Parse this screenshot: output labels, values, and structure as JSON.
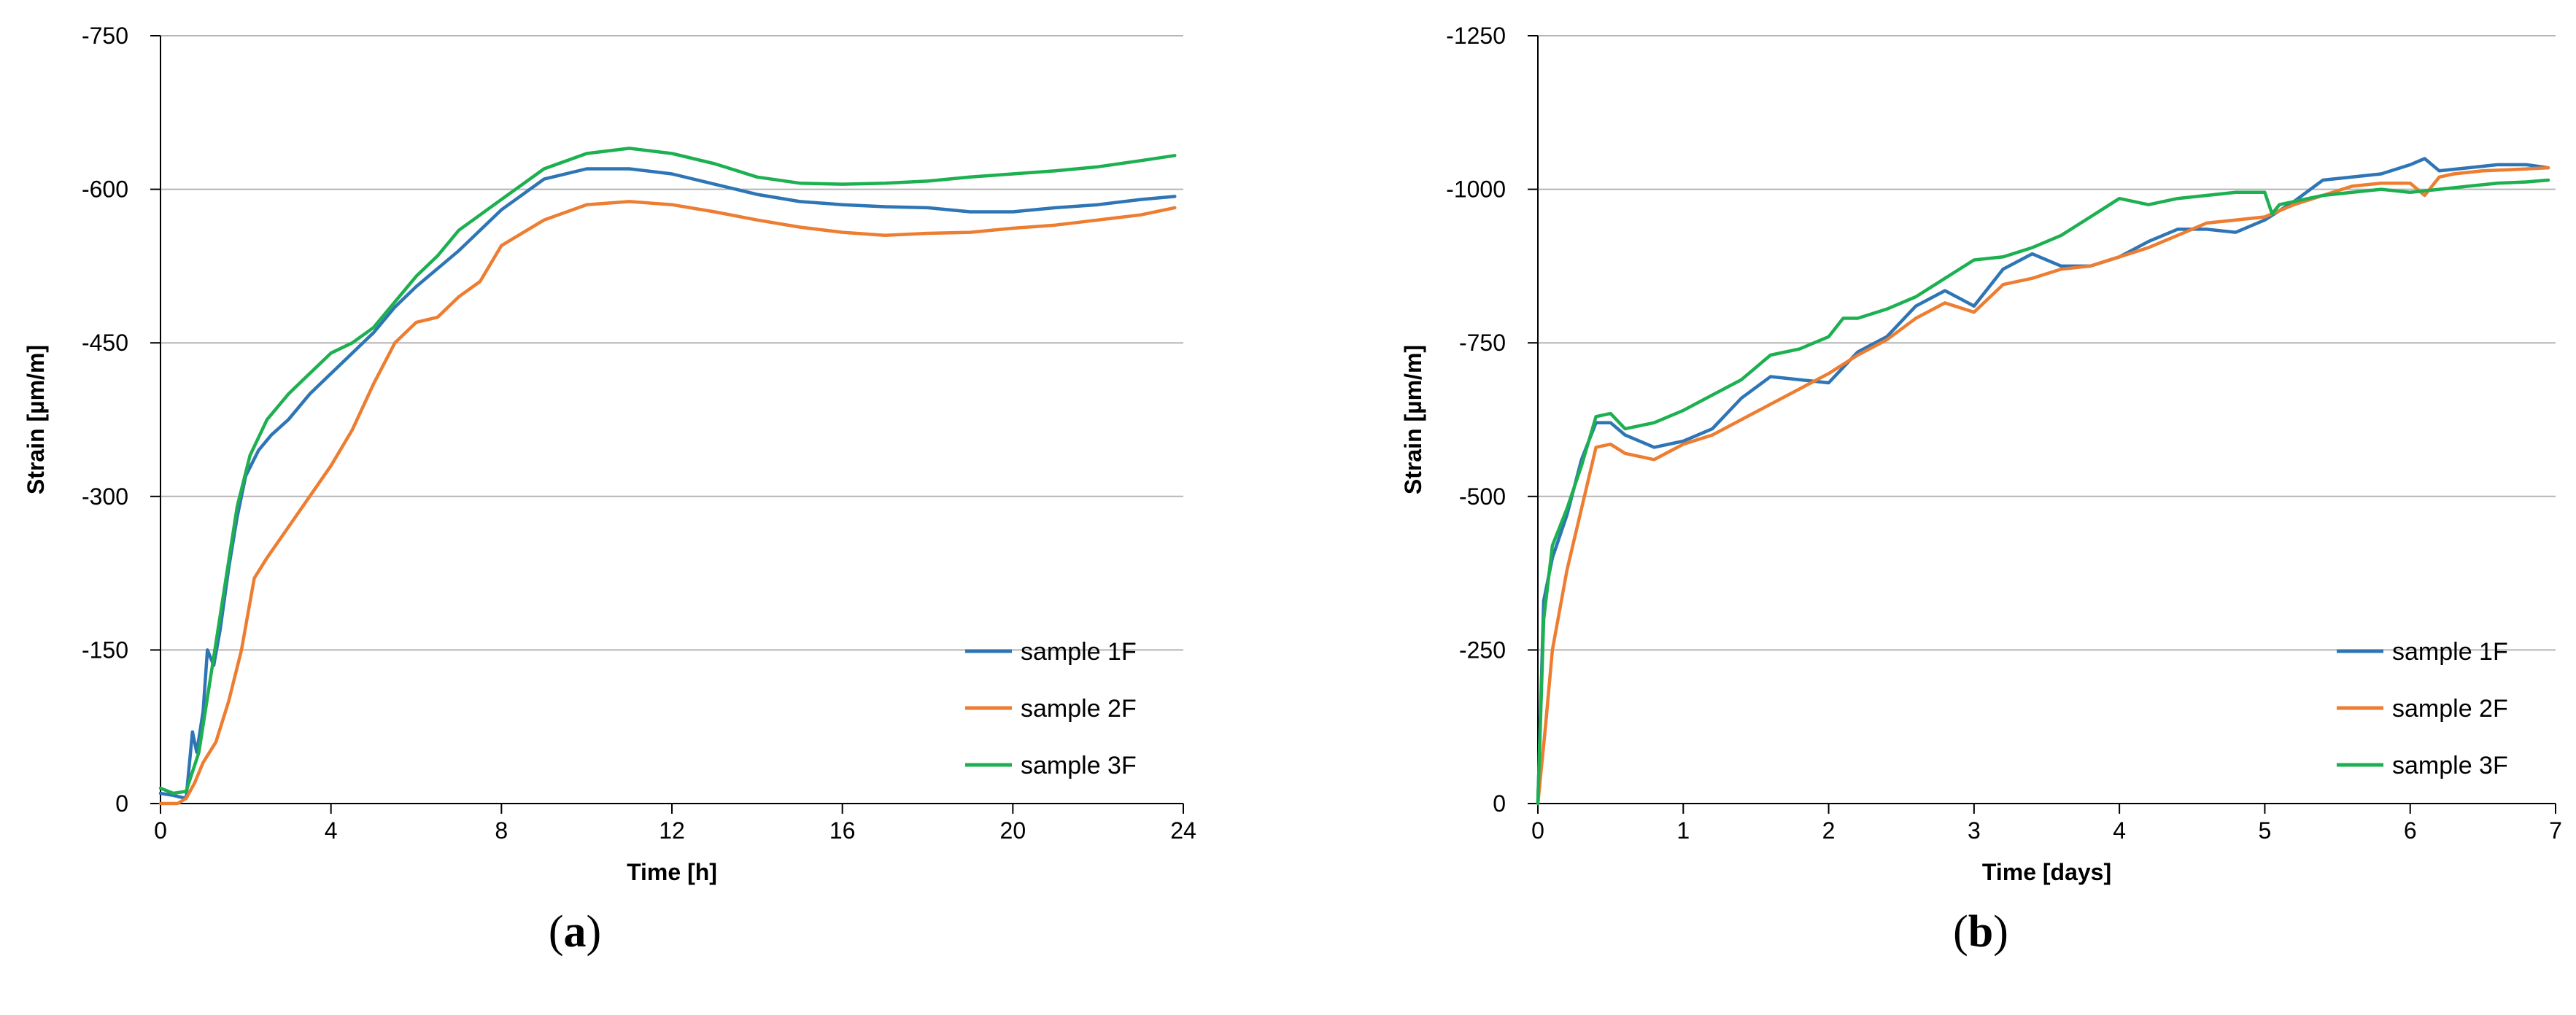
{
  "chart_data": [
    {
      "type": "line",
      "panel_label": "(a)",
      "panel_letter": "a",
      "xlabel": "Time [h]",
      "ylabel": "Strain [µm/m]",
      "xlim": [
        0,
        24
      ],
      "ylim": [
        0,
        -750
      ],
      "xticks": [
        0,
        4,
        8,
        12,
        16,
        20,
        24
      ],
      "yticks": [
        0,
        -150,
        -300,
        -450,
        -600,
        -750
      ],
      "grid": "horizontal",
      "legend_position": "bottom-right",
      "series": [
        {
          "name": "sample 1F",
          "color": "#2e75b6",
          "x": [
            0,
            0.3,
            0.6,
            0.75,
            0.85,
            1.0,
            1.1,
            1.25,
            1.4,
            1.6,
            1.8,
            2.0,
            2.3,
            2.6,
            3.0,
            3.5,
            4.0,
            4.5,
            5.0,
            5.5,
            6.0,
            7.0,
            8.0,
            9.0,
            10.0,
            11.0,
            12.0,
            13.0,
            14.0,
            15.0,
            16.0,
            17.0,
            18.0,
            19.0,
            20.0,
            21.0,
            22.0,
            23.0,
            23.8
          ],
          "y": [
            -10,
            -8,
            -5,
            -70,
            -50,
            -90,
            -150,
            -135,
            -170,
            -230,
            -280,
            -320,
            -345,
            -360,
            -375,
            -400,
            -420,
            -440,
            -460,
            -485,
            -505,
            -540,
            -580,
            -610,
            -620,
            -620,
            -615,
            -605,
            -595,
            -588,
            -585,
            -583,
            -582,
            -578,
            -578,
            -582,
            -585,
            -590,
            -593
          ]
        },
        {
          "name": "sample 2F",
          "color": "#ed7d31",
          "x": [
            0,
            0.4,
            0.6,
            0.8,
            1.0,
            1.3,
            1.6,
            1.9,
            2.2,
            2.5,
            3.0,
            3.5,
            4.0,
            4.5,
            5.0,
            5.5,
            6.0,
            6.5,
            7.0,
            7.5,
            8.0,
            9.0,
            10.0,
            11.0,
            12.0,
            13.0,
            14.0,
            15.0,
            16.0,
            17.0,
            18.0,
            19.0,
            20.0,
            21.0,
            22.0,
            23.0,
            23.8
          ],
          "y": [
            0,
            0,
            -5,
            -20,
            -40,
            -60,
            -100,
            -150,
            -220,
            -240,
            -270,
            -300,
            -330,
            -365,
            -410,
            -450,
            -470,
            -475,
            -495,
            -510,
            -545,
            -570,
            -585,
            -588,
            -585,
            -578,
            -570,
            -563,
            -558,
            -555,
            -557,
            -558,
            -562,
            -565,
            -570,
            -575,
            -582
          ]
        },
        {
          "name": "sample 3F",
          "color": "#1db050",
          "x": [
            0,
            0.3,
            0.6,
            0.9,
            1.2,
            1.5,
            1.8,
            2.1,
            2.5,
            3.0,
            3.5,
            4.0,
            4.5,
            5.0,
            5.5,
            6.0,
            6.5,
            7.0,
            8.0,
            9.0,
            10.0,
            11.0,
            12.0,
            13.0,
            14.0,
            15.0,
            16.0,
            17.0,
            18.0,
            19.0,
            20.0,
            21.0,
            22.0,
            23.0,
            23.8
          ],
          "y": [
            -15,
            -10,
            -12,
            -50,
            -130,
            -210,
            -290,
            -340,
            -375,
            -400,
            -420,
            -440,
            -450,
            -465,
            -490,
            -515,
            -535,
            -560,
            -590,
            -620,
            -635,
            -640,
            -635,
            -625,
            -612,
            -606,
            -605,
            -606,
            -608,
            -612,
            -615,
            -618,
            -622,
            -628,
            -633
          ]
        }
      ]
    },
    {
      "type": "line",
      "panel_label": "(b)",
      "panel_letter": "b",
      "xlabel": "Time [days]",
      "ylabel": "Strain [µm/m]",
      "xlim": [
        0,
        7
      ],
      "ylim": [
        0,
        -1250
      ],
      "xticks": [
        0,
        1,
        2,
        3,
        4,
        5,
        6,
        7
      ],
      "yticks": [
        0,
        -250,
        -500,
        -750,
        -1000,
        -1250
      ],
      "grid": "horizontal",
      "legend_position": "bottom-right",
      "series": [
        {
          "name": "sample 1F",
          "color": "#2e75b6",
          "x": [
            0,
            0.04,
            0.1,
            0.2,
            0.3,
            0.4,
            0.5,
            0.6,
            0.8,
            1.0,
            1.2,
            1.4,
            1.6,
            1.8,
            2.0,
            2.2,
            2.4,
            2.6,
            2.8,
            3.0,
            3.2,
            3.4,
            3.6,
            3.8,
            4.0,
            4.2,
            4.4,
            4.6,
            4.8,
            5.0,
            5.2,
            5.4,
            5.6,
            5.8,
            6.0,
            6.1,
            6.2,
            6.4,
            6.6,
            6.8,
            6.95
          ],
          "y": [
            0,
            -330,
            -400,
            -470,
            -560,
            -620,
            -620,
            -600,
            -580,
            -590,
            -610,
            -660,
            -695,
            -690,
            -685,
            -735,
            -760,
            -810,
            -835,
            -810,
            -870,
            -895,
            -875,
            -875,
            -890,
            -915,
            -935,
            -935,
            -930,
            -950,
            -980,
            -1015,
            -1020,
            -1025,
            -1040,
            -1050,
            -1030,
            -1035,
            -1040,
            -1040,
            -1035
          ]
        },
        {
          "name": "sample 2F",
          "color": "#ed7d31",
          "x": [
            0,
            0.05,
            0.1,
            0.2,
            0.3,
            0.4,
            0.5,
            0.6,
            0.8,
            1.0,
            1.2,
            1.4,
            1.6,
            1.8,
            2.0,
            2.2,
            2.4,
            2.6,
            2.8,
            3.0,
            3.2,
            3.4,
            3.6,
            3.8,
            4.0,
            4.2,
            4.4,
            4.6,
            4.8,
            5.0,
            5.2,
            5.4,
            5.6,
            5.8,
            6.0,
            6.1,
            6.2,
            6.3,
            6.5,
            6.7,
            6.95
          ],
          "y": [
            0,
            -120,
            -250,
            -380,
            -480,
            -580,
            -585,
            -570,
            -560,
            -585,
            -600,
            -625,
            -650,
            -675,
            -700,
            -730,
            -755,
            -790,
            -815,
            -800,
            -845,
            -855,
            -870,
            -875,
            -890,
            -905,
            -925,
            -945,
            -950,
            -955,
            -975,
            -990,
            -1005,
            -1010,
            -1010,
            -990,
            -1020,
            -1025,
            -1030,
            -1032,
            -1035
          ]
        },
        {
          "name": "sample 3F",
          "color": "#1db050",
          "x": [
            0,
            0.04,
            0.1,
            0.2,
            0.3,
            0.4,
            0.5,
            0.6,
            0.8,
            1.0,
            1.2,
            1.4,
            1.6,
            1.8,
            2.0,
            2.1,
            2.2,
            2.4,
            2.6,
            2.8,
            3.0,
            3.2,
            3.4,
            3.6,
            3.8,
            4.0,
            4.1,
            4.2,
            4.4,
            4.6,
            4.8,
            5.0,
            5.05,
            5.1,
            5.2,
            5.4,
            5.6,
            5.8,
            6.0,
            6.2,
            6.4,
            6.6,
            6.8,
            6.95
          ],
          "y": [
            0,
            -300,
            -420,
            -480,
            -550,
            -630,
            -635,
            -610,
            -620,
            -640,
            -665,
            -690,
            -730,
            -740,
            -760,
            -790,
            -790,
            -805,
            -825,
            -855,
            -885,
            -890,
            -905,
            -925,
            -955,
            -985,
            -980,
            -975,
            -985,
            -990,
            -995,
            -995,
            -960,
            -975,
            -980,
            -990,
            -995,
            -1000,
            -995,
            -1000,
            -1005,
            -1010,
            -1012,
            -1015
          ]
        }
      ]
    }
  ]
}
